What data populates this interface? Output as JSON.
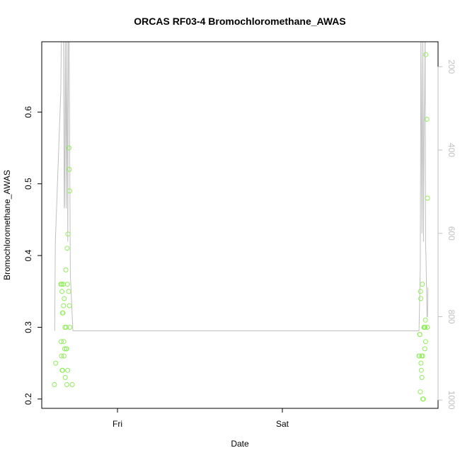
{
  "chart_data": {
    "type": "scatter",
    "title": "ORCAS RF03-4 Bromochloromethane_AWAS",
    "xlabel": "Date",
    "ylabel": "Bromochloromethane_AWAS",
    "x_ticks": [
      "Fri",
      "Sat"
    ],
    "y_ticks": [
      "0.2",
      "0.3",
      "0.4",
      "0.5",
      "0.6"
    ],
    "y2_ticks": [
      "200",
      "400",
      "600",
      "800",
      "1000"
    ],
    "ylim": [
      0.187,
      0.698
    ],
    "y2lim": [
      1020,
      140
    ],
    "xlim": [
      "2016-02-18T21:25",
      "2016-02-21T01:25"
    ],
    "grid": false,
    "colors": {
      "points": "#90ee5a",
      "line": "#c0c0c0",
      "axis": "#000000",
      "right_axis": "#c0c0c0"
    },
    "series": [
      {
        "kind": "points",
        "points": [
          [
            "2016-02-18T23:05",
            0.22
          ],
          [
            "2016-02-18T23:15",
            0.25
          ],
          [
            "2016-02-18T23:55",
            0.36
          ],
          [
            "2016-02-18T23:58",
            0.28
          ],
          [
            "2016-02-19T00:00",
            0.26
          ],
          [
            "2016-02-19T00:02",
            0.36
          ],
          [
            "2016-02-19T00:04",
            0.35
          ],
          [
            "2016-02-19T00:06",
            0.24
          ],
          [
            "2016-02-19T00:08",
            0.32
          ],
          [
            "2016-02-19T00:10",
            0.24
          ],
          [
            "2016-02-19T00:12",
            0.32
          ],
          [
            "2016-02-19T00:14",
            0.36
          ],
          [
            "2016-02-19T00:16",
            0.33
          ],
          [
            "2016-02-19T00:18",
            0.28
          ],
          [
            "2016-02-19T00:20",
            0.26
          ],
          [
            "2016-02-19T00:22",
            0.34
          ],
          [
            "2016-02-19T00:26",
            0.27
          ],
          [
            "2016-02-19T00:28",
            0.3
          ],
          [
            "2016-02-19T00:30",
            0.23
          ],
          [
            "2016-02-19T00:35",
            0.38
          ],
          [
            "2016-02-19T00:37",
            0.3
          ],
          [
            "2016-02-19T00:39",
            0.27
          ],
          [
            "2016-02-19T00:41",
            0.27
          ],
          [
            "2016-02-19T00:43",
            0.22
          ],
          [
            "2016-02-19T00:45",
            0.41
          ],
          [
            "2016-02-19T00:47",
            0.36
          ],
          [
            "2016-02-19T00:49",
            0.24
          ],
          [
            "2016-02-19T00:51",
            0.43
          ],
          [
            "2016-02-19T00:57",
            0.35
          ],
          [
            "2016-02-19T00:59",
            0.55
          ],
          [
            "2016-02-19T01:01",
            0.52
          ],
          [
            "2016-02-19T01:03",
            0.33
          ],
          [
            "2016-02-19T01:05",
            0.49
          ],
          [
            "2016-02-19T01:07",
            0.3
          ],
          [
            "2016-02-19T01:25",
            0.22
          ],
          [
            "2016-02-20T22:55",
            0.26
          ],
          [
            "2016-02-20T22:58",
            0.26
          ],
          [
            "2016-02-20T23:00",
            0.29
          ],
          [
            "2016-02-20T23:02",
            0.29
          ],
          [
            "2016-02-20T23:05",
            0.21
          ],
          [
            "2016-02-20T23:07",
            0.35
          ],
          [
            "2016-02-20T23:09",
            0.34
          ],
          [
            "2016-02-20T23:11",
            0.25
          ],
          [
            "2016-02-20T23:13",
            0.24
          ],
          [
            "2016-02-20T23:15",
            0.26
          ],
          [
            "2016-02-20T23:18",
            0.23
          ],
          [
            "2016-02-20T23:21",
            0.36
          ],
          [
            "2016-02-20T23:23",
            0.26
          ],
          [
            "2016-02-20T23:25",
            0.2
          ],
          [
            "2016-02-20T23:29",
            0.2
          ],
          [
            "2016-02-20T23:33",
            0.3
          ],
          [
            "2016-02-20T23:36",
            0.3
          ],
          [
            "2016-02-20T23:39",
            0.3
          ],
          [
            "2016-02-20T23:41",
            0.27
          ],
          [
            "2016-02-20T23:43",
            0.3
          ],
          [
            "2016-02-20T23:45",
            0.31
          ],
          [
            "2016-02-20T23:47",
            0.28
          ],
          [
            "2016-02-20T23:49",
            0.68
          ],
          [
            "2016-02-20T23:57",
            0.59
          ],
          [
            "2016-02-21T00:00",
            0.3
          ],
          [
            "2016-02-21T00:02",
            0.48
          ]
        ]
      },
      {
        "kind": "line",
        "axis": "right",
        "points": [
          [
            "2016-02-18T23:07",
            834
          ],
          [
            "2016-02-18T23:12",
            620
          ],
          [
            "2016-02-18T23:55",
            260
          ],
          [
            "2016-02-19T00:00",
            100
          ],
          [
            "2016-02-19T00:15",
            100
          ],
          [
            "2016-02-19T00:22",
            540
          ],
          [
            "2016-02-19T00:25",
            530
          ],
          [
            "2016-02-19T00:30",
            100
          ],
          [
            "2016-02-19T00:38",
            540
          ],
          [
            "2016-02-19T00:43",
            100
          ],
          [
            "2016-02-19T00:50",
            620
          ],
          [
            "2016-02-19T00:55",
            100
          ],
          [
            "2016-02-19T01:00",
            100
          ],
          [
            "2016-02-19T01:10",
            700
          ],
          [
            "2016-02-19T01:30",
            834
          ],
          [
            "2016-02-20T22:55",
            834
          ],
          [
            "2016-02-20T23:05",
            680
          ],
          [
            "2016-02-20T23:10",
            100
          ],
          [
            "2016-02-20T23:18",
            600
          ],
          [
            "2016-02-20T23:25",
            100
          ],
          [
            "2016-02-20T23:30",
            620
          ],
          [
            "2016-02-20T23:35",
            330
          ],
          [
            "2016-02-20T23:39",
            280
          ],
          [
            "2016-02-20T23:43",
            100
          ],
          [
            "2016-02-20T23:47",
            630
          ],
          [
            "2016-02-20T23:50",
            650
          ],
          [
            "2016-02-20T23:58",
            800
          ],
          [
            "2016-02-21T00:02",
            800
          ],
          [
            "2016-02-21T00:05",
            730
          ]
        ]
      }
    ]
  }
}
